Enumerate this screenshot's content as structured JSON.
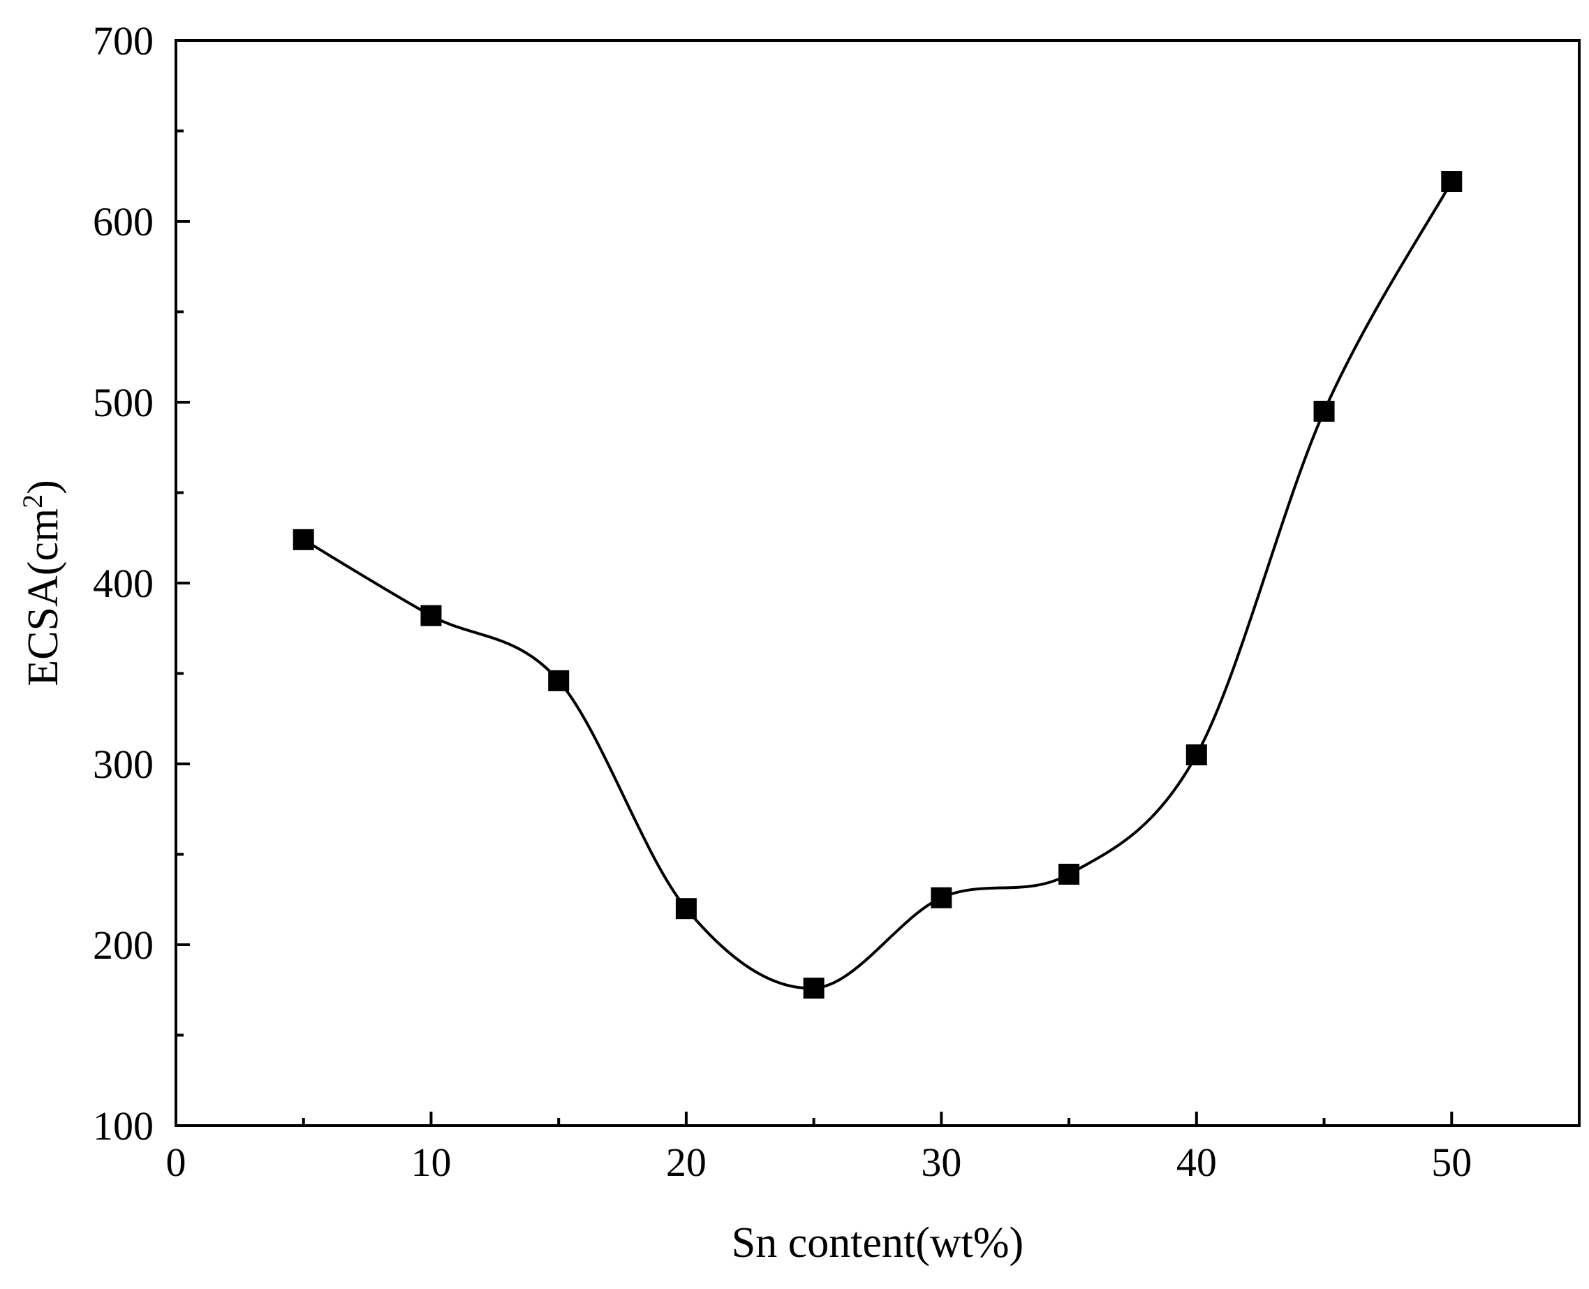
{
  "chart_data": {
    "type": "line",
    "title": "",
    "xlabel": "Sn content(wt%)",
    "ylabel": {
      "base": "ECSA(cm",
      "superscript": "2",
      "suffix": ")"
    },
    "xlim": [
      0,
      55
    ],
    "ylim": [
      100,
      700
    ],
    "xticks_major": [
      0,
      10,
      20,
      30,
      40,
      50
    ],
    "xticks_minor": [
      5,
      15,
      25,
      35,
      45,
      55
    ],
    "yticks_major": [
      100,
      200,
      300,
      400,
      500,
      600,
      700
    ],
    "yticks_minor": [
      150,
      250,
      350,
      450,
      550,
      650
    ],
    "grid": false,
    "legend": "none",
    "smooth": true,
    "marker": "square",
    "color": "#000000",
    "series": [
      {
        "x": [
          5,
          10,
          15,
          20,
          25,
          30,
          35,
          40,
          45,
          50
        ],
        "y": [
          424,
          382,
          346,
          220,
          176,
          226,
          239,
          305,
          495,
          622
        ]
      }
    ]
  }
}
